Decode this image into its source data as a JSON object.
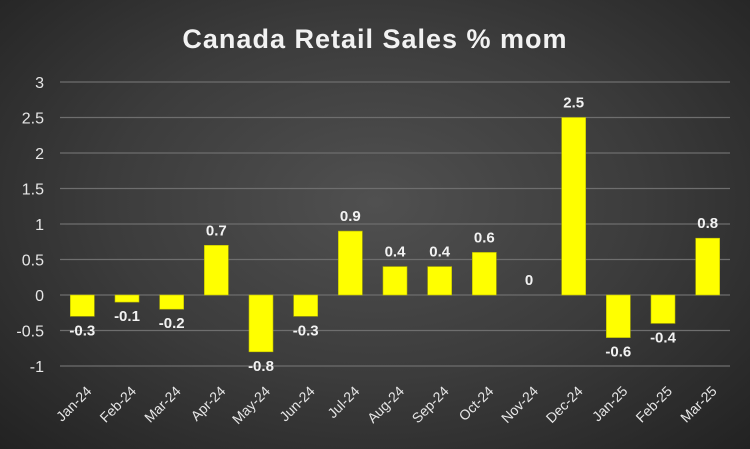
{
  "chart_data": {
    "type": "bar",
    "title": "Canada Retail Sales % mom",
    "xlabel": "",
    "ylabel": "",
    "categories": [
      "Jan-24",
      "Feb-24",
      "Mar-24",
      "Apr-24",
      "May-24",
      "Jun-24",
      "Jul-24",
      "Aug-24",
      "Sep-24",
      "Oct-24",
      "Nov-24",
      "Dec-24",
      "Jan-25",
      "Feb-25",
      "Mar-25"
    ],
    "values": [
      -0.3,
      -0.1,
      -0.2,
      0.7,
      -0.8,
      -0.3,
      0.9,
      0.4,
      0.4,
      0.6,
      0,
      2.5,
      -0.6,
      -0.4,
      0.8
    ],
    "data_labels": [
      "-0.3",
      "-0.1",
      "-0.2",
      "0.7",
      "-0.8",
      "-0.3",
      "0.9",
      "0.4",
      "0.4",
      "0.6",
      "0",
      "2.5",
      "-0.6",
      "-0.4",
      "0.8"
    ],
    "yticks": [
      "-1",
      "-0.5",
      "0",
      "0.5",
      "1",
      "1.5",
      "2",
      "2.5",
      "3"
    ],
    "ytick_values": [
      -1,
      -0.5,
      0,
      0.5,
      1,
      1.5,
      2,
      2.5,
      3
    ],
    "ylim": [
      -1,
      3
    ],
    "grid": true,
    "legend": "none",
    "bar_color": "#ffff00"
  }
}
